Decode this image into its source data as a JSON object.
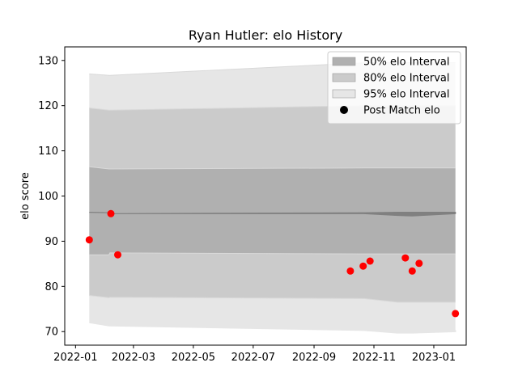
{
  "chart_data": {
    "type": "area",
    "title": "Ryan Hutler: elo History",
    "xlabel": "",
    "ylabel": "elo score",
    "x_ticks": [
      "2022-01",
      "2022-03",
      "2022-05",
      "2022-07",
      "2022-09",
      "2022-11",
      "2023-01"
    ],
    "y_ticks": [
      70,
      80,
      90,
      100,
      110,
      120,
      130
    ],
    "xlim": [
      "2021-12-21",
      "2023-02-03"
    ],
    "ylim": [
      67,
      133
    ],
    "grid": false,
    "legend_position": "top-right",
    "legend": [
      {
        "label": "50% elo Interval",
        "kind": "band",
        "color": "#b0b0b0"
      },
      {
        "label": "80% elo Interval",
        "kind": "band",
        "color": "#cbcbcb"
      },
      {
        "label": "95% elo Interval",
        "kind": "band",
        "color": "#e6e6e6"
      },
      {
        "label": "Post Match elo",
        "kind": "marker",
        "color": "#000000"
      }
    ],
    "band_colors": {
      "i50": "#b0b0b0",
      "i80": "#cbcbcb",
      "i95": "#e6e6e6",
      "line": "#808080",
      "point": "#ff0000"
    },
    "band_x": [
      "2022-01-15",
      "2022-02-04",
      "2022-02-05",
      "2022-10-22",
      "2022-11-25",
      "2022-12-10",
      "2023-01-23"
    ],
    "center": [
      96.4,
      96.3,
      96.1,
      96.2,
      96.0,
      95.9,
      96.3
    ],
    "center_upper": [
      96.4,
      96.3,
      96.1,
      96.3,
      96.4,
      96.4,
      96.4
    ],
    "center_lower": [
      96.4,
      96.3,
      96.1,
      96.1,
      95.7,
      95.6,
      96.1
    ],
    "i50_upper": [
      106.5,
      106.0,
      106.0,
      106.2,
      106.2,
      106.2,
      106.2
    ],
    "i50_lower": [
      97.5,
      97.3,
      96.3,
      96.3,
      96.2,
      96.2,
      96.2
    ],
    "i80_upper": [
      119.5,
      119.0,
      119.0,
      120.0,
      120.0,
      120.0,
      120.0
    ],
    "i80_lower": [
      87.0,
      87.0,
      87.4,
      87.2,
      87.2,
      87.2,
      87.2
    ],
    "i95_upper": [
      127.0,
      126.7,
      126.7,
      129.5,
      129.5,
      129.5,
      129.5
    ],
    "i95_lower": [
      78.0,
      77.5,
      77.6,
      77.3,
      76.5,
      76.5,
      76.5
    ],
    "i95b_upper": [
      72.0,
      71.3,
      71.3,
      70.6,
      70.3,
      70.2,
      70.2
    ],
    "i95b_lower": [
      72.0,
      71.3,
      71.3,
      70.3,
      69.7,
      69.7,
      70.0
    ],
    "i80b_upper": [
      78.0,
      77.5,
      77.6,
      77.3,
      76.5,
      76.5,
      76.5
    ],
    "i80b_lower": [
      78.0,
      77.5,
      77.6,
      77.3,
      76.5,
      76.5,
      76.5
    ],
    "points": [
      {
        "x": "2022-01-15",
        "y": 90.3
      },
      {
        "x": "2022-02-06",
        "y": 96.1
      },
      {
        "x": "2022-02-13",
        "y": 87.0
      },
      {
        "x": "2022-10-08",
        "y": 83.4
      },
      {
        "x": "2022-10-21",
        "y": 84.5
      },
      {
        "x": "2022-10-28",
        "y": 85.6
      },
      {
        "x": "2022-12-03",
        "y": 86.3
      },
      {
        "x": "2022-12-10",
        "y": 83.4
      },
      {
        "x": "2022-12-17",
        "y": 85.1
      },
      {
        "x": "2023-01-23",
        "y": 74.0
      }
    ]
  }
}
